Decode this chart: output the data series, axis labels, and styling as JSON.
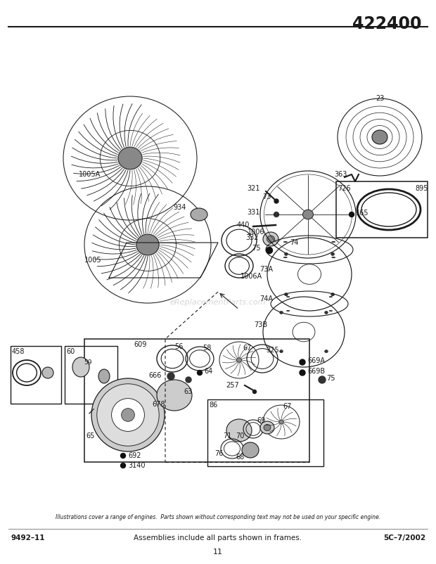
{
  "title": "422400",
  "bg_color": "#ffffff",
  "line_color": "#1a1a1a",
  "footer_left": "9492–11",
  "footer_center": "Assemblies include all parts shown in frames.",
  "footer_right": "5C–7/2002",
  "footer_page": "11",
  "footer_italic": "Illustrations cover a range of engines.  Parts shown without corresponding text may not be used on your specific engine.",
  "watermark": "eReplacementParts.com"
}
